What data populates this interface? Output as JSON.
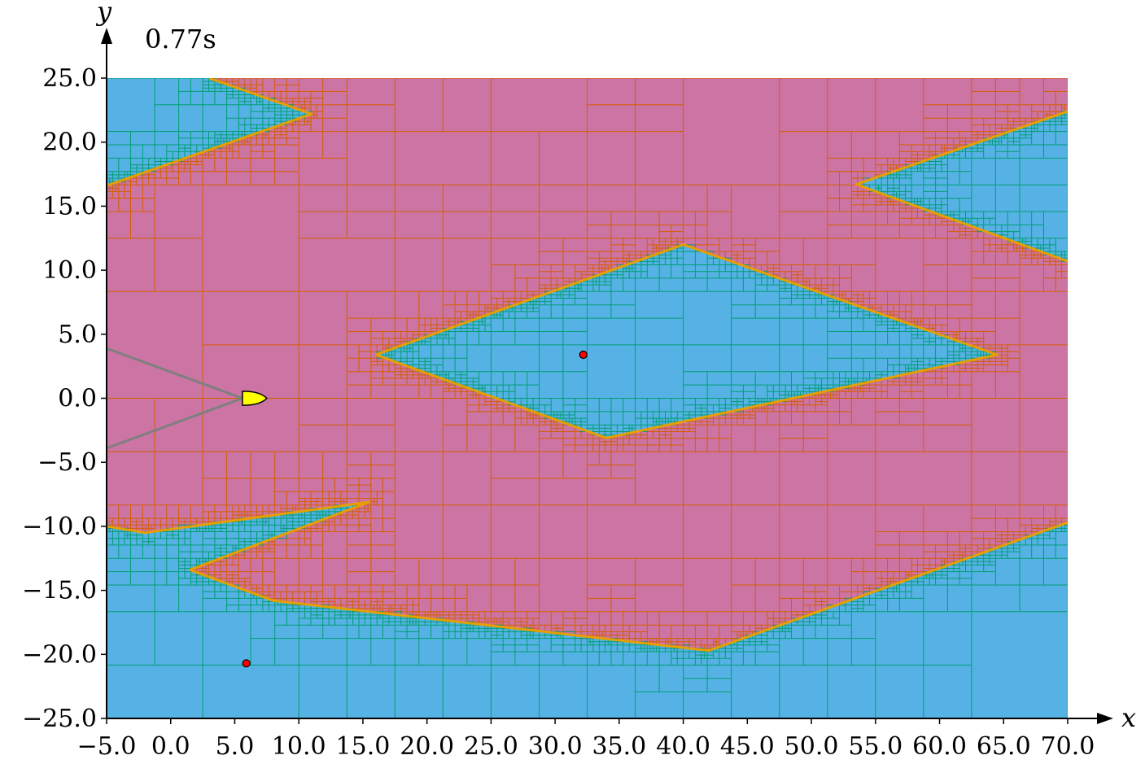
{
  "chart_data": {
    "type": "mesh-region-plot",
    "time_label": "0.77s",
    "xlabel": "x",
    "ylabel": "y",
    "xlim": [
      -5,
      70
    ],
    "ylim": [
      -25,
      25
    ],
    "xticks": [
      -5,
      0,
      5,
      10,
      15,
      20,
      25,
      30,
      35,
      40,
      45,
      50,
      55,
      60,
      65,
      70
    ],
    "xtick_labels": [
      "−5.0",
      "0.0",
      "5.0",
      "10.0",
      "15.0",
      "20.0",
      "25.0",
      "30.0",
      "35.0",
      "40.0",
      "45.0",
      "50.0",
      "55.0",
      "60.0",
      "65.0",
      "70.0"
    ],
    "yticks": [
      25,
      20,
      15,
      10,
      5,
      0,
      -5,
      -10,
      -15,
      -20,
      -25
    ],
    "ytick_labels": [
      "25.0",
      "20.0",
      "15.0",
      "10.0",
      "5.0",
      "0.0",
      "−5.0",
      "−10.0",
      "−15.0",
      "−20.0",
      "−25.0"
    ],
    "colors": {
      "shocked_region": "#cc74a3",
      "free_region": "#56b2e5",
      "shocked_grid": "#d55e00",
      "free_grid": "#009e73",
      "front_line": "#e69f00",
      "body": "#ffff00",
      "cone": "#7f7f7f",
      "marker": "#ff0000"
    },
    "regions": [
      {
        "name": "top-left-wedge",
        "points": [
          [
            -5,
            16.6
          ],
          [
            11,
            22.2
          ],
          [
            3,
            25
          ],
          [
            -5,
            25
          ]
        ]
      },
      {
        "name": "right-top-wedge",
        "points": [
          [
            53.5,
            16.7
          ],
          [
            70,
            22.4
          ],
          [
            70,
            10.7
          ]
        ]
      },
      {
        "name": "center-diamond",
        "points": [
          [
            16,
            3.4
          ],
          [
            40,
            12
          ],
          [
            64.5,
            3.4
          ],
          [
            34,
            -3.1
          ]
        ]
      },
      {
        "name": "bottom-region",
        "points": [
          [
            -5,
            -10
          ],
          [
            -2,
            -10.5
          ],
          [
            15.5,
            -8.1
          ],
          [
            1.5,
            -13.4
          ],
          [
            8,
            -15.8
          ],
          [
            42,
            -19.7
          ],
          [
            70,
            -9.7
          ],
          [
            70,
            -25
          ],
          [
            -5,
            -25
          ]
        ]
      }
    ],
    "front_lines": [
      [
        [
          -5,
          16.6
        ],
        [
          11,
          22.2
        ],
        [
          3,
          25
        ]
      ],
      [
        [
          70,
          22.4
        ],
        [
          53.5,
          16.7
        ],
        [
          70,
          10.7
        ]
      ],
      [
        [
          16,
          3.4
        ],
        [
          40,
          12
        ],
        [
          64.5,
          3.4
        ],
        [
          34,
          -3.1
        ],
        [
          16,
          3.4
        ]
      ],
      [
        [
          -5,
          -10
        ],
        [
          -2,
          -10.5
        ],
        [
          15.5,
          -8.1
        ],
        [
          1.5,
          -13.4
        ],
        [
          8,
          -15.8
        ],
        [
          42,
          -19.7
        ],
        [
          70,
          -9.7
        ]
      ]
    ],
    "body": {
      "nose": [
        7.5,
        0.0
      ],
      "base_x": 5.6,
      "half_width": 0.55
    },
    "cone_lines": [
      [
        [
          -5,
          3.9
        ],
        [
          5.6,
          0.0
        ]
      ],
      [
        [
          -5,
          -3.9
        ],
        [
          5.6,
          0.0
        ]
      ]
    ],
    "markers": [
      [
        32.2,
        3.4
      ],
      [
        5.9,
        -20.7
      ]
    ]
  }
}
